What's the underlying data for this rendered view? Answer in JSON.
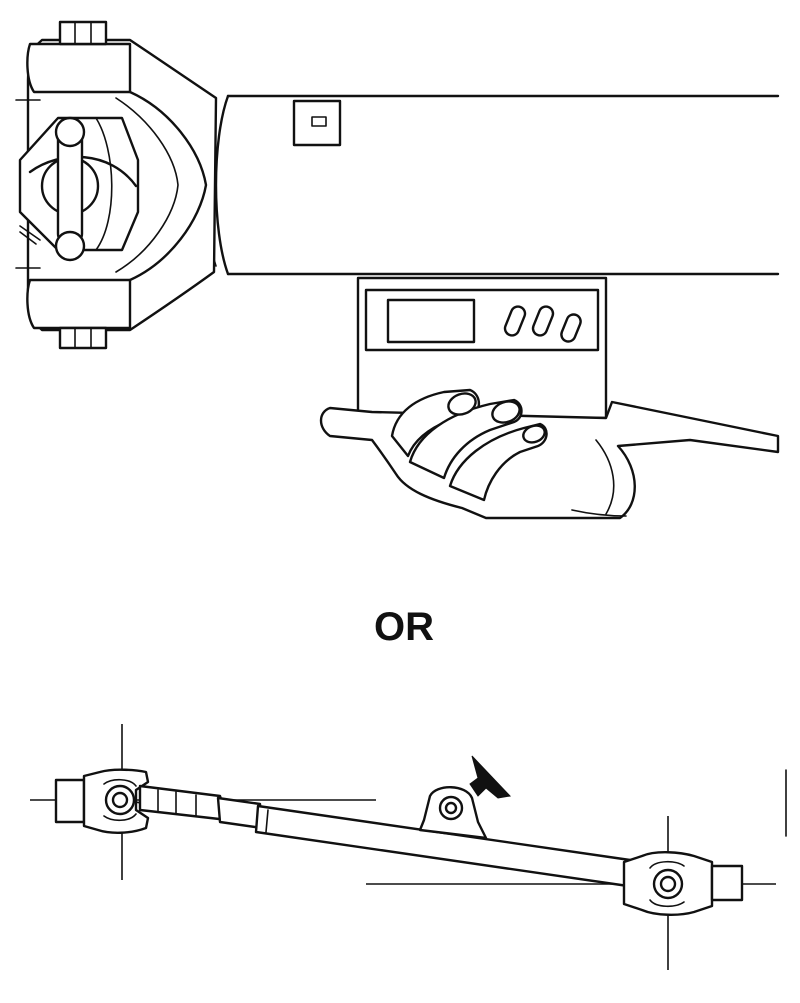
{
  "separator": {
    "label": "OR"
  },
  "colors": {
    "ink": "#111111",
    "paper": "#ffffff"
  },
  "icons": {
    "direction_arrow": "arrow-icon"
  }
}
